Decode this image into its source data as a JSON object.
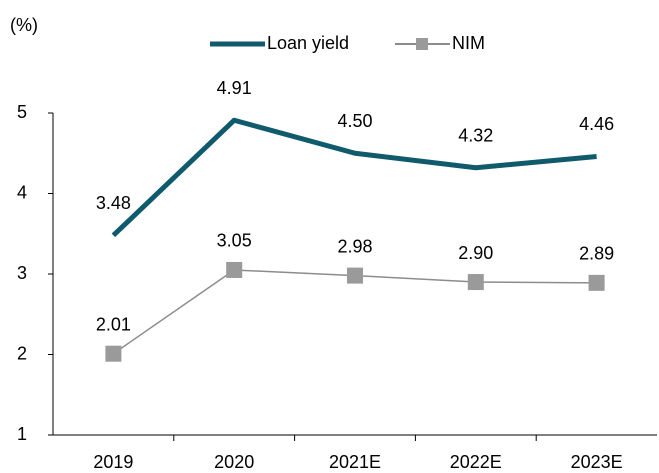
{
  "chart_data": {
    "type": "line",
    "y_label": "(%)",
    "categories": [
      "2019",
      "2020",
      "2021E",
      "2022E",
      "2023E"
    ],
    "series": [
      {
        "name": "Loan yield",
        "color": "#0f5a6c",
        "values": [
          3.48,
          4.91,
          4.5,
          4.32,
          4.46
        ],
        "value_labels": [
          "3.48",
          "4.91",
          "4.50",
          "4.32",
          "4.46"
        ]
      },
      {
        "name": "NIM",
        "color": "#8c8c8c",
        "marker_color": "#9a9a9a",
        "values": [
          2.01,
          3.05,
          2.98,
          2.9,
          2.89
        ],
        "value_labels": [
          "2.01",
          "3.05",
          "2.98",
          "2.90",
          "2.89"
        ]
      }
    ],
    "ylim": [
      1,
      5
    ],
    "yticks": [
      1,
      2,
      3,
      4,
      5
    ],
    "grid": false,
    "legend": "top"
  }
}
